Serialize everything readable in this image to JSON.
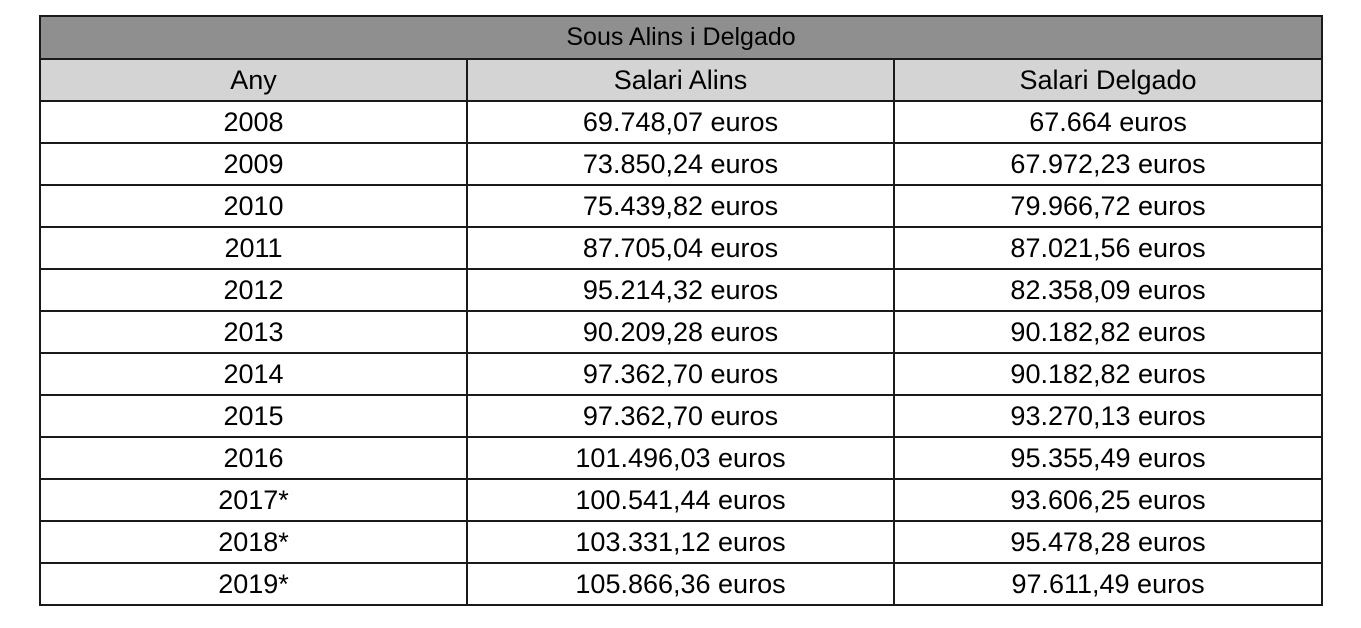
{
  "table": {
    "title": "Sous Alins i Delgado",
    "columns": [
      "Any",
      "Salari Alins",
      "Salari Delgado"
    ],
    "rows": [
      [
        "2008",
        "69.748,07 euros",
        "67.664 euros"
      ],
      [
        "2009",
        "73.850,24 euros",
        "67.972,23 euros"
      ],
      [
        "2010",
        "75.439,82 euros",
        "79.966,72 euros"
      ],
      [
        "2011",
        "87.705,04 euros",
        "87.021,56 euros"
      ],
      [
        "2012",
        "95.214,32 euros",
        "82.358,09 euros"
      ],
      [
        "2013",
        "90.209,28 euros",
        "90.182,82 euros"
      ],
      [
        "2014",
        "97.362,70 euros",
        "90.182,82 euros"
      ],
      [
        "2015",
        "97.362,70 euros",
        "93.270,13 euros"
      ],
      [
        "2016",
        "101.496,03 euros",
        "95.355,49 euros"
      ],
      [
        "2017*",
        "100.541,44 euros",
        "93.606,25 euros"
      ],
      [
        "2018*",
        "103.331,12 euros",
        "95.478,28 euros"
      ],
      [
        "2019*",
        "105.866,36 euros",
        "97.611,49 euros"
      ]
    ]
  },
  "colors": {
    "title_background": "#8f8f8f",
    "header_background": "#d4d4d4",
    "cell_background": "#ffffff",
    "border": "#1a1a1a"
  },
  "chart_data": {
    "type": "table",
    "title": "Sous Alins i Delgado",
    "columns": [
      "Any",
      "Salari Alins",
      "Salari Delgado"
    ],
    "categories": [
      "2008",
      "2009",
      "2010",
      "2011",
      "2012",
      "2013",
      "2014",
      "2015",
      "2016",
      "2017*",
      "2018*",
      "2019*"
    ],
    "series": [
      {
        "name": "Salari Alins",
        "values": [
          69748.07,
          73850.24,
          75439.82,
          87705.04,
          95214.32,
          90209.28,
          97362.7,
          97362.7,
          101496.03,
          100541.44,
          103331.12,
          105866.36
        ]
      },
      {
        "name": "Salari Delgado",
        "values": [
          67664,
          67972.23,
          79966.72,
          87021.56,
          82358.09,
          90182.82,
          90182.82,
          93270.13,
          95355.49,
          93606.25,
          95478.28,
          97611.49
        ]
      }
    ]
  }
}
